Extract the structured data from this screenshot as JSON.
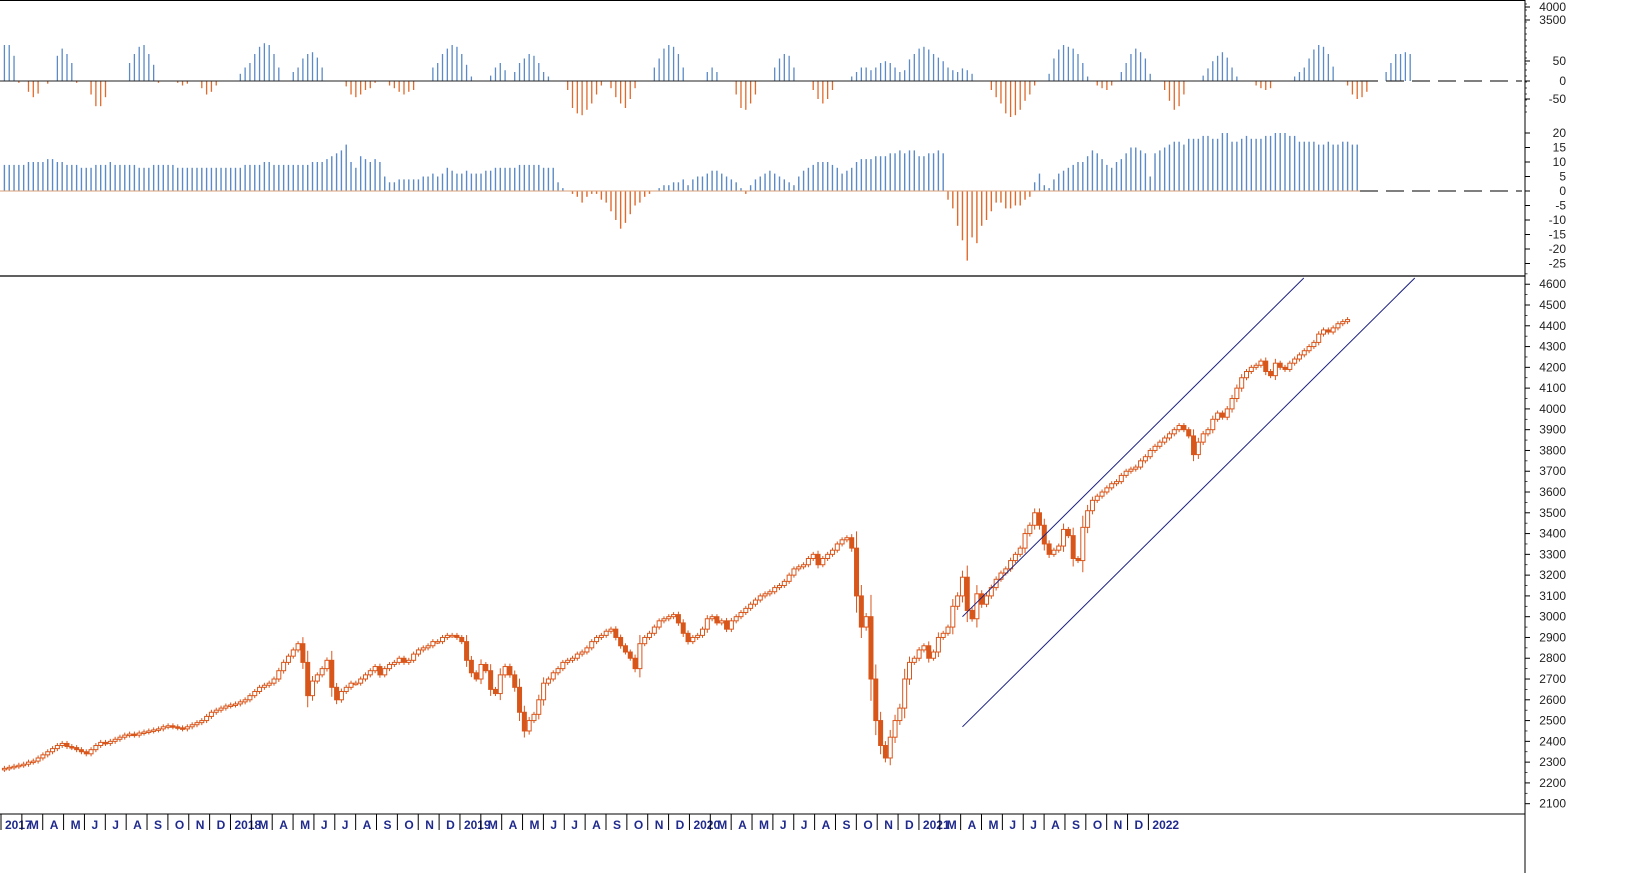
{
  "colors": {
    "up": "#5b8ac6",
    "down": "#e06a2c",
    "candle": "#d9561b",
    "channel": "#1a1f80",
    "axis": "#000000",
    "dash": "#333333"
  },
  "chart_data": [
    {
      "type": "bar",
      "panel": "top-oscillator",
      "axis_ticks_right": [
        "4000",
        "3500",
        "50",
        "0",
        "-50"
      ],
      "ylim": [
        -60,
        60
      ],
      "x_start": 2017.0,
      "x_step_weeks": 1,
      "values": [
        40,
        40,
        28,
        -2,
        0,
        -12,
        -18,
        -14,
        0,
        -3,
        0,
        28,
        36,
        30,
        20,
        -2,
        0,
        0,
        -15,
        -28,
        -28,
        -18,
        0,
        0,
        0,
        0,
        20,
        30,
        38,
        40,
        30,
        18,
        -2,
        0,
        0,
        0,
        -2,
        -5,
        -3,
        0,
        0,
        -8,
        -15,
        -12,
        -5,
        0,
        0,
        0,
        0,
        8,
        15,
        20,
        30,
        38,
        42,
        40,
        30,
        15,
        0,
        0,
        10,
        15,
        25,
        30,
        32,
        26,
        15,
        0,
        0,
        0,
        0,
        -6,
        -15,
        -18,
        -15,
        -10,
        -8,
        -2,
        0,
        0,
        -5,
        -8,
        -12,
        -15,
        -12,
        -10,
        0,
        0,
        0,
        15,
        20,
        30,
        36,
        40,
        38,
        30,
        18,
        5,
        0,
        0,
        0,
        6,
        15,
        20,
        12,
        0,
        10,
        20,
        25,
        30,
        28,
        20,
        10,
        5,
        0,
        0,
        0,
        -10,
        -30,
        -36,
        -38,
        -32,
        -25,
        -15,
        -5,
        0,
        -8,
        -18,
        -25,
        -30,
        -20,
        -8,
        0,
        0,
        0,
        15,
        25,
        36,
        40,
        38,
        30,
        15,
        0,
        0,
        0,
        0,
        10,
        15,
        10,
        0,
        0,
        0,
        -15,
        -30,
        -32,
        -25,
        -15,
        0,
        0,
        0,
        15,
        25,
        30,
        28,
        15,
        0,
        0,
        0,
        -10,
        -20,
        -25,
        -20,
        -10,
        0,
        0,
        0,
        5,
        10,
        15,
        15,
        12,
        15,
        20,
        22,
        20,
        15,
        10,
        12,
        24,
        30,
        36,
        38,
        35,
        30,
        26,
        22,
        15,
        12,
        10,
        14,
        12,
        8,
        0,
        0,
        0,
        -10,
        -18,
        -25,
        -36,
        -40,
        -38,
        -32,
        -22,
        -15,
        -5,
        0,
        0,
        8,
        25,
        35,
        40,
        38,
        36,
        30,
        20,
        5,
        0,
        -5,
        -8,
        -10,
        -5,
        0,
        10,
        20,
        30,
        36,
        32,
        25,
        8,
        0,
        0,
        -10,
        -22,
        -32,
        -28,
        -15,
        0,
        0,
        0,
        6,
        14,
        22,
        28,
        32,
        26,
        15,
        5,
        0,
        0,
        0,
        -5,
        -8,
        -10,
        -8,
        0,
        0,
        0,
        0,
        5,
        10,
        15,
        25,
        35,
        40,
        38,
        30,
        16,
        0,
        0,
        -5,
        -15,
        -20,
        -18,
        -12,
        0,
        0,
        0,
        10,
        20,
        30,
        30,
        32,
        30
      ]
    },
    {
      "type": "bar",
      "panel": "middle-momentum",
      "axis_ticks_right": [
        "20",
        "15",
        "10",
        "5",
        "0",
        "-5",
        "-10",
        "-15",
        "-20",
        "-25"
      ],
      "ylim": [
        -27,
        22
      ],
      "x_start": 2017.0,
      "x_step_weeks": 1,
      "values": [
        9,
        9,
        9,
        9,
        9,
        10,
        10,
        10,
        10,
        11,
        11,
        10,
        10,
        9,
        9,
        9,
        8,
        8,
        8,
        9,
        9,
        9,
        10,
        9,
        9,
        9,
        9,
        9,
        8,
        8,
        8,
        9,
        9,
        9,
        9,
        9,
        8,
        8,
        8,
        8,
        8,
        8,
        8,
        8,
        8,
        8,
        8,
        8,
        8,
        8,
        9,
        9,
        9,
        9,
        10,
        10,
        9,
        9,
        9,
        9,
        9,
        9,
        9,
        9,
        10,
        10,
        10,
        11,
        12,
        13,
        14,
        16,
        10,
        8,
        12,
        11,
        10,
        11,
        10,
        5,
        3,
        3,
        4,
        4,
        4,
        4,
        4,
        5,
        5,
        6,
        5,
        6,
        8,
        7,
        6,
        6,
        7,
        6,
        6,
        6,
        7,
        7,
        8,
        8,
        8,
        8,
        8,
        9,
        9,
        9,
        9,
        9,
        8,
        8,
        8,
        3,
        1,
        0,
        -1,
        -2,
        -4,
        -2,
        -1,
        -1,
        -3,
        -4,
        -7,
        -10,
        -13,
        -11,
        -8,
        -5,
        -4,
        -2,
        -1,
        0,
        1,
        2,
        2,
        3,
        3,
        4,
        2,
        4,
        5,
        5,
        6,
        7,
        7,
        6,
        5,
        4,
        3,
        1,
        -1,
        2,
        4,
        5,
        6,
        7,
        6,
        5,
        4,
        3,
        2,
        5,
        7,
        8,
        9,
        10,
        10,
        10,
        9,
        8,
        6,
        7,
        8,
        10,
        11,
        11,
        11,
        12,
        12,
        12,
        13,
        13,
        14,
        13,
        14,
        14,
        12,
        12,
        13,
        13,
        14,
        13,
        -3,
        -6,
        -12,
        -17,
        -24,
        -16,
        -18,
        -12,
        -10,
        -7,
        -4,
        -4,
        -6,
        -6,
        -5,
        -5,
        -3,
        -2,
        3,
        6,
        2,
        1,
        4,
        6,
        7,
        8,
        9,
        10,
        10,
        12,
        14,
        13,
        11,
        9,
        8,
        10,
        11,
        13,
        15,
        15,
        14,
        13,
        5,
        13,
        14,
        15,
        16,
        17,
        17,
        16,
        18,
        18,
        18,
        19,
        19,
        18,
        18,
        20,
        20,
        17,
        17,
        18,
        19,
        18,
        18,
        18,
        19,
        19,
        20,
        20,
        20,
        19,
        19,
        17,
        17,
        17,
        17,
        16,
        16,
        17,
        16,
        16,
        17,
        17,
        16,
        16
      ]
    },
    {
      "type": "line",
      "panel": "price-candles",
      "axis_ticks_right": [
        "4600",
        "4500",
        "4400",
        "4300",
        "4200",
        "4100",
        "4000",
        "3900",
        "3800",
        "3700",
        "3600",
        "3500",
        "3400",
        "3300",
        "3200",
        "3100",
        "3000",
        "2900",
        "2800",
        "2700",
        "2600",
        "2500",
        "2400",
        "2300",
        "2200",
        "2100"
      ],
      "ylim": [
        2060,
        4630
      ],
      "x_start": 2017.0,
      "x_step_weeks": 1,
      "close": [
        2270,
        2275,
        2280,
        2285,
        2290,
        2300,
        2305,
        2320,
        2335,
        2350,
        2365,
        2380,
        2390,
        2375,
        2370,
        2360,
        2350,
        2340,
        2360,
        2380,
        2395,
        2390,
        2400,
        2410,
        2420,
        2430,
        2435,
        2430,
        2440,
        2445,
        2450,
        2455,
        2460,
        2470,
        2475,
        2470,
        2465,
        2460,
        2470,
        2480,
        2490,
        2500,
        2520,
        2540,
        2550,
        2560,
        2570,
        2575,
        2580,
        2590,
        2600,
        2620,
        2640,
        2660,
        2670,
        2680,
        2700,
        2740,
        2780,
        2810,
        2840,
        2870,
        2780,
        2620,
        2690,
        2720,
        2750,
        2790,
        2660,
        2600,
        2640,
        2660,
        2680,
        2680,
        2700,
        2720,
        2740,
        2760,
        2720,
        2750,
        2770,
        2780,
        2800,
        2780,
        2790,
        2820,
        2840,
        2850,
        2860,
        2880,
        2880,
        2900,
        2910,
        2910,
        2900,
        2880,
        2790,
        2730,
        2700,
        2770,
        2740,
        2650,
        2630,
        2720,
        2760,
        2720,
        2660,
        2540,
        2450,
        2500,
        2530,
        2600,
        2680,
        2700,
        2730,
        2750,
        2780,
        2790,
        2800,
        2820,
        2830,
        2850,
        2880,
        2900,
        2910,
        2930,
        2940,
        2900,
        2860,
        2830,
        2800,
        2750,
        2870,
        2900,
        2920,
        2950,
        2980,
        2990,
        3000,
        3010,
        2970,
        2920,
        2880,
        2900,
        2910,
        2940,
        2990,
        3000,
        2970,
        2980,
        2940,
        2980,
        3000,
        3020,
        3040,
        3060,
        3080,
        3100,
        3110,
        3120,
        3140,
        3150,
        3170,
        3200,
        3230,
        3240,
        3250,
        3280,
        3300,
        3250,
        3280,
        3300,
        3320,
        3350,
        3370,
        3380,
        3330,
        3100,
        2950,
        3000,
        2700,
        2500,
        2380,
        2320,
        2420,
        2500,
        2560,
        2700,
        2780,
        2800,
        2840,
        2860,
        2800,
        2830,
        2900,
        2920,
        2950,
        3050,
        3100,
        3190,
        3030,
        2990,
        3110,
        3060,
        3100,
        3140,
        3180,
        3210,
        3230,
        3270,
        3300,
        3330,
        3400,
        3440,
        3500,
        3440,
        3350,
        3300,
        3320,
        3340,
        3420,
        3390,
        3280,
        3270,
        3430,
        3510,
        3560,
        3580,
        3600,
        3620,
        3640,
        3650,
        3680,
        3700,
        3710,
        3720,
        3750,
        3770,
        3800,
        3820,
        3840,
        3860,
        3880,
        3900,
        3920,
        3900,
        3870,
        3780,
        3840,
        3880,
        3900,
        3950,
        3980,
        3960,
        4000,
        4050,
        4100,
        4150,
        4180,
        4200,
        4210,
        4230,
        4180,
        4160,
        4220,
        4200,
        4190,
        4220,
        4240,
        4260,
        4280,
        4300,
        4320,
        4360,
        4380,
        4370,
        4390,
        4410,
        4420,
        4430
      ]
    }
  ],
  "axis": {
    "x_ticks": [
      {
        "label": "2017",
        "year": true
      },
      {
        "label": "M"
      },
      {
        "label": "A"
      },
      {
        "label": "M"
      },
      {
        "label": "J"
      },
      {
        "label": "J"
      },
      {
        "label": "A"
      },
      {
        "label": "S"
      },
      {
        "label": "O"
      },
      {
        "label": "N"
      },
      {
        "label": "D"
      },
      {
        "label": "2018",
        "year": true
      },
      {
        "label": "M"
      },
      {
        "label": "A"
      },
      {
        "label": "M"
      },
      {
        "label": "J"
      },
      {
        "label": "J"
      },
      {
        "label": "A"
      },
      {
        "label": "S"
      },
      {
        "label": "O"
      },
      {
        "label": "N"
      },
      {
        "label": "D"
      },
      {
        "label": "2019",
        "year": true
      },
      {
        "label": "M"
      },
      {
        "label": "A"
      },
      {
        "label": "M"
      },
      {
        "label": "J"
      },
      {
        "label": "J"
      },
      {
        "label": "A"
      },
      {
        "label": "S"
      },
      {
        "label": "O"
      },
      {
        "label": "N"
      },
      {
        "label": "D"
      },
      {
        "label": "2020",
        "year": true
      },
      {
        "label": "M"
      },
      {
        "label": "A"
      },
      {
        "label": "M"
      },
      {
        "label": "J"
      },
      {
        "label": "J"
      },
      {
        "label": "A"
      },
      {
        "label": "S"
      },
      {
        "label": "O"
      },
      {
        "label": "N"
      },
      {
        "label": "D"
      },
      {
        "label": "2021",
        "year": true
      },
      {
        "label": "M"
      },
      {
        "label": "A"
      },
      {
        "label": "M"
      },
      {
        "label": "J"
      },
      {
        "label": "J"
      },
      {
        "label": "A"
      },
      {
        "label": "S"
      },
      {
        "label": "O"
      },
      {
        "label": "N"
      },
      {
        "label": "D"
      },
      {
        "label": "2022",
        "year": true
      }
    ]
  }
}
